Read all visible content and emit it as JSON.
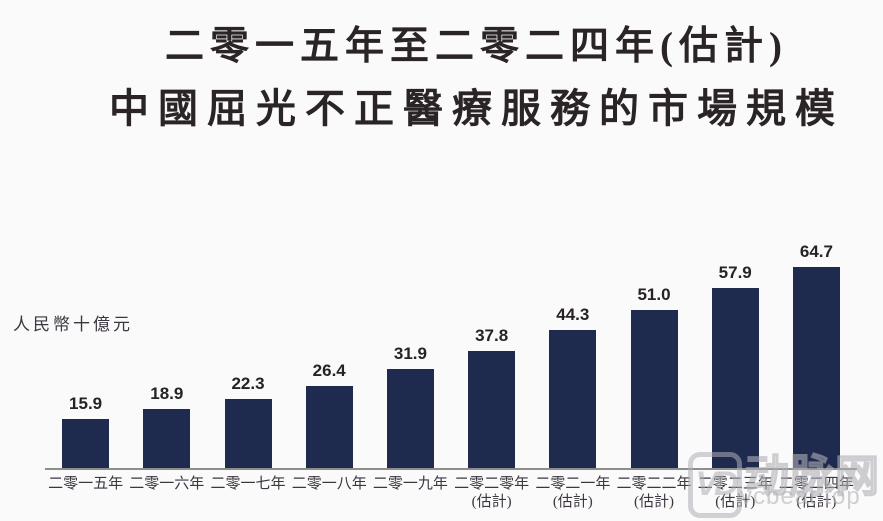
{
  "title": {
    "line1": "二零一五年至二零二四年(估計)",
    "line2": "中國屈光不正醫療服務的市場規模"
  },
  "y_axis_unit": "人民幣十億元",
  "chart_data": {
    "type": "bar",
    "title": "二零一五年至二零二四年(估計) 中國屈光不正醫療服務的市場規模",
    "ylabel": "人民幣十億元",
    "xlabel": "",
    "ylim": [
      0,
      70
    ],
    "grid": false,
    "bar_color": "#1f2b4e",
    "categories": [
      {
        "label": "二零一五年",
        "sublabel": ""
      },
      {
        "label": "二零一六年",
        "sublabel": ""
      },
      {
        "label": "二零一七年",
        "sublabel": ""
      },
      {
        "label": "二零一八年",
        "sublabel": ""
      },
      {
        "label": "二零一九年",
        "sublabel": ""
      },
      {
        "label": "二零二零年",
        "sublabel": "(估計)"
      },
      {
        "label": "二零二一年",
        "sublabel": "(估計)"
      },
      {
        "label": "二零二二年",
        "sublabel": "(估計)"
      },
      {
        "label": "二零二三年",
        "sublabel": "(估計)"
      },
      {
        "label": "二零二四年",
        "sublabel": "(估計)"
      }
    ],
    "values": [
      15.9,
      18.9,
      22.3,
      26.4,
      31.9,
      37.8,
      44.3,
      51.0,
      57.9,
      64.7
    ]
  },
  "watermark": {
    "logo_monogram": "VD",
    "name": "动脉网",
    "url": "vcbeat.top"
  }
}
